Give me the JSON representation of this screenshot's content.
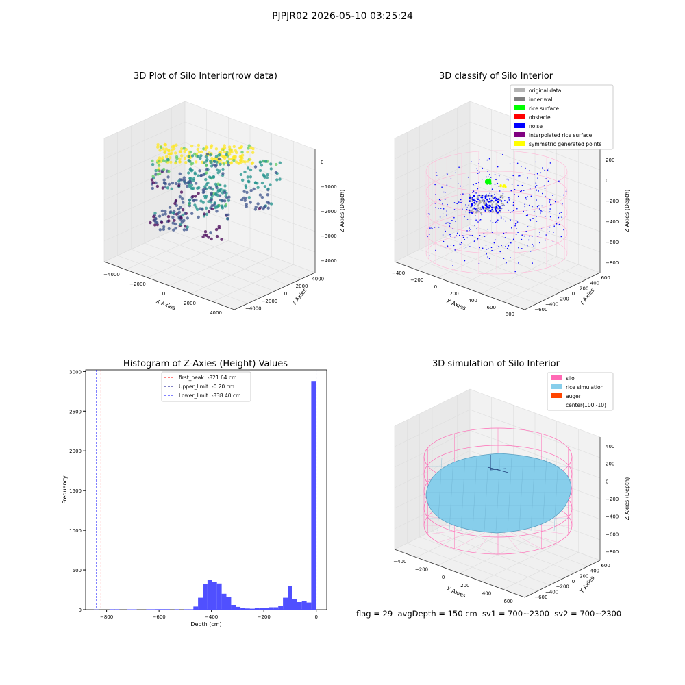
{
  "figure": {
    "suptitle": "PJPJR02 2026-05-10 03:25:24",
    "footer": "flag = 29  avgDepth = 150 cm  sv1 = 700~2300  sv2 = 700~2300"
  },
  "chart_data": [
    {
      "type": "scatter",
      "title": "3D Plot of Silo Interior(row data)",
      "xlabel": "X Axies",
      "ylabel": "Y Axies",
      "zlabel": "Z Axies (Depth)",
      "xticks": [
        "−4000",
        "−2000",
        "0",
        "2000",
        "4000"
      ],
      "yticks": [
        "−4000",
        "−2000",
        "0",
        "2000",
        "4000"
      ],
      "zticks": [
        "0",
        "−1000",
        "−2000",
        "−3000",
        "−4000"
      ],
      "xlim": [
        -4500,
        4500
      ],
      "ylim": [
        -4500,
        4500
      ],
      "zlim": [
        -4500,
        200
      ],
      "colormap": "viridis"
    },
    {
      "type": "scatter",
      "title": "3D classify of Silo Interior",
      "xlabel": "X Axies",
      "ylabel": "Y Axies",
      "zlabel": "Z Axies (Depth)",
      "xticks": [
        "−400",
        "−200",
        "0",
        "200",
        "400",
        "600",
        "800"
      ],
      "yticks": [
        "−600",
        "−400",
        "−200",
        "0",
        "200",
        "400",
        "600"
      ],
      "zticks": [
        "200",
        "0",
        "−200",
        "−400",
        "−600",
        "−800"
      ],
      "legend_loc": "upper right",
      "legend": [
        {
          "label": "original data",
          "color": "#b4b4b4"
        },
        {
          "label": "inner wall",
          "color": "#808080"
        },
        {
          "label": "rice surface",
          "color": "#00ff00"
        },
        {
          "label": "obstacle",
          "color": "#ff0000"
        },
        {
          "label": "noise",
          "color": "#0000ff"
        },
        {
          "label": "interpolated rice surface",
          "color": "#800080"
        },
        {
          "label": "symmetric generated points",
          "color": "#ffff00"
        }
      ]
    },
    {
      "type": "bar",
      "title": "Histogram of Z-Axies (Height) Values",
      "xlabel": "Depth (cm)",
      "ylabel": "Frequency",
      "xlim": [
        -880,
        40
      ],
      "ylim": [
        0,
        3020
      ],
      "xticks": [
        -800,
        -600,
        -400,
        -200,
        0
      ],
      "yticks": [
        0,
        500,
        1000,
        1500,
        2000,
        2500,
        3000
      ],
      "bar_color": "#5050ff",
      "bins": [
        {
          "x": -840,
          "v": 3
        },
        {
          "x": -780,
          "v": 5
        },
        {
          "x": -760,
          "v": 5
        },
        {
          "x": -712,
          "v": 4
        },
        {
          "x": -694,
          "v": 4
        },
        {
          "x": -640,
          "v": 5
        },
        {
          "x": -622,
          "v": 5
        },
        {
          "x": -604,
          "v": 6
        },
        {
          "x": -586,
          "v": 6
        },
        {
          "x": -568,
          "v": 6
        },
        {
          "x": -532,
          "v": 5
        },
        {
          "x": -496,
          "v": 5
        },
        {
          "x": -478,
          "v": 5
        },
        {
          "x": -460,
          "v": 40
        },
        {
          "x": -442,
          "v": 150
        },
        {
          "x": -424,
          "v": 320
        },
        {
          "x": -406,
          "v": 380
        },
        {
          "x": -388,
          "v": 345
        },
        {
          "x": -370,
          "v": 330
        },
        {
          "x": -352,
          "v": 200
        },
        {
          "x": -334,
          "v": 155
        },
        {
          "x": -316,
          "v": 60
        },
        {
          "x": -298,
          "v": 35
        },
        {
          "x": -280,
          "v": 25
        },
        {
          "x": -262,
          "v": 15
        },
        {
          "x": -244,
          "v": 12
        },
        {
          "x": -226,
          "v": 25
        },
        {
          "x": -208,
          "v": 22
        },
        {
          "x": -190,
          "v": 25
        },
        {
          "x": -172,
          "v": 30
        },
        {
          "x": -154,
          "v": 30
        },
        {
          "x": -136,
          "v": 45
        },
        {
          "x": -118,
          "v": 150
        },
        {
          "x": -100,
          "v": 300
        },
        {
          "x": -82,
          "v": 130
        },
        {
          "x": -64,
          "v": 95
        },
        {
          "x": -46,
          "v": 110
        },
        {
          "x": -28,
          "v": 90
        },
        {
          "x": -10,
          "v": 2880
        }
      ],
      "bin_width": 18,
      "vlines": [
        {
          "label": "first_peak: -821.64 cm",
          "x": -821.64,
          "color": "#ff0000"
        },
        {
          "label": "Upper_limit: -0.20 cm",
          "x": -0.2,
          "color": "#00008b"
        },
        {
          "label": "Lower_limit: -838.40 cm",
          "x": -838.4,
          "color": "#0000ff"
        }
      ],
      "legend_loc": "upper center"
    },
    {
      "type": "surface",
      "title": "3D simulation of Silo Interior",
      "xlabel": "X Axies",
      "ylabel": "Y Axies",
      "zlabel": "Z Axies (Depth)",
      "xticks": [
        "−400",
        "−200",
        "0",
        "200",
        "400",
        "600"
      ],
      "yticks": [
        "−600",
        "−400",
        "−200",
        "0",
        "200",
        "400",
        "600"
      ],
      "zticks": [
        "400",
        "200",
        "0",
        "−200",
        "−400",
        "−600",
        "−800"
      ],
      "legend_loc": "upper right",
      "legend": [
        {
          "label": "silo",
          "color": "#ff69b4"
        },
        {
          "label": "rice simulation",
          "color": "#87ceeb"
        },
        {
          "label": "auger",
          "color": "#ff4500"
        },
        {
          "label": "center(100,-10)",
          "color": "none"
        }
      ]
    }
  ]
}
